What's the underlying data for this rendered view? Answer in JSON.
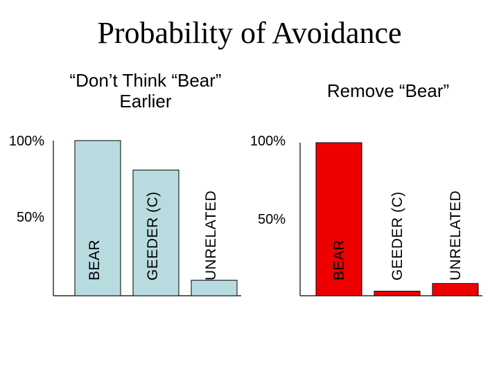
{
  "slide_title": "Probability of Avoidance",
  "colors": {
    "left_bar_fill": "#b8dbe0",
    "right_bar_fill": "#ee0000",
    "bar_stroke": "#000000"
  },
  "chart_data": [
    {
      "type": "bar",
      "title_lines": [
        "“Don’t Think “Bear”",
        "Earlier"
      ],
      "categories": [
        "BEAR",
        "GEEDER (C)",
        "UNRELATED"
      ],
      "values": [
        100,
        81,
        10
      ],
      "yticks": [
        "100%",
        "50%"
      ],
      "ylim": [
        0,
        100
      ]
    },
    {
      "type": "bar",
      "title_lines": [
        "Remove “Bear”"
      ],
      "categories": [
        "BEAR",
        "GEEDER (C)",
        "UNRELATED"
      ],
      "values": [
        100,
        3,
        8
      ],
      "yticks": [
        "100%",
        "50%"
      ],
      "ylim": [
        0,
        100
      ]
    }
  ]
}
